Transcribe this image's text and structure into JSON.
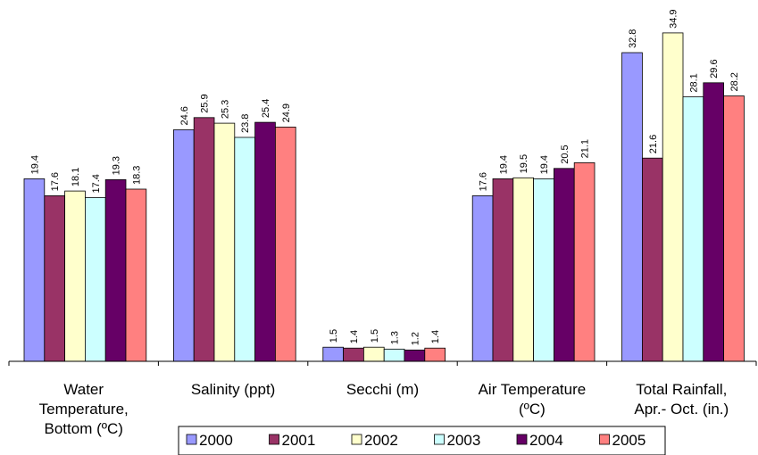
{
  "chart_data": {
    "type": "bar",
    "categories": [
      "Water Temperature, Bottom (ºC)",
      "Salinity (ppt)",
      "Secchi (m)",
      "Air Temperature (ºC)",
      "Total Rainfall, Apr.- Oct. (in.)"
    ],
    "category_lines": [
      [
        "Water",
        "Temperature,",
        "Bottom (ºC)"
      ],
      [
        "Salinity (ppt)"
      ],
      [
        "Secchi (m)"
      ],
      [
        "Air Temperature",
        "(ºC)"
      ],
      [
        "Total Rainfall,",
        "Apr.- Oct. (in.)"
      ]
    ],
    "series": [
      {
        "name": "2000",
        "color": "#9999FF",
        "values": [
          19.4,
          24.6,
          1.5,
          17.6,
          32.8
        ]
      },
      {
        "name": "2001",
        "color": "#993366",
        "values": [
          17.6,
          25.9,
          1.4,
          19.4,
          21.6
        ]
      },
      {
        "name": "2002",
        "color": "#FFFFCC",
        "values": [
          18.1,
          25.3,
          1.5,
          19.5,
          34.9
        ]
      },
      {
        "name": "2003",
        "color": "#CCFFFF",
        "values": [
          17.4,
          23.8,
          1.3,
          19.4,
          28.1
        ]
      },
      {
        "name": "2004",
        "color": "#660066",
        "values": [
          19.3,
          25.4,
          1.2,
          20.5,
          29.6
        ]
      },
      {
        "name": "2005",
        "color": "#FF8080",
        "values": [
          18.3,
          24.9,
          1.4,
          21.1,
          28.2
        ]
      }
    ],
    "ylim": [
      0,
      36.5
    ],
    "grid": false,
    "legend_position": "bottom",
    "data_labels": true
  }
}
